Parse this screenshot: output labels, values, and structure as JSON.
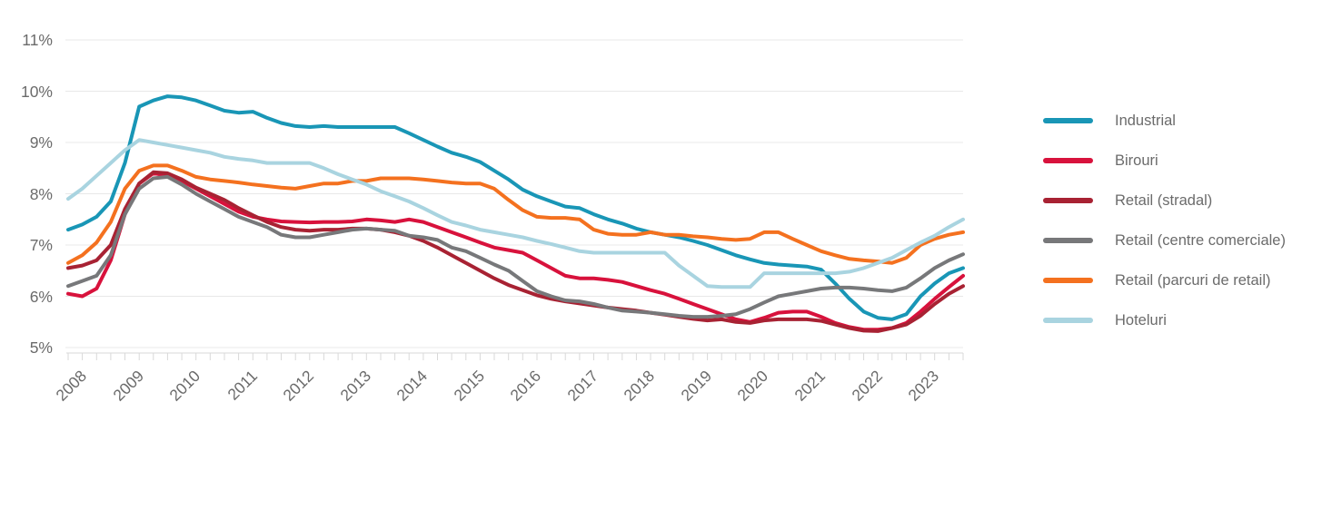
{
  "chart_data": {
    "type": "line",
    "frequency": "quarterly",
    "x_labels": [
      "2008",
      "2009",
      "2010",
      "2011",
      "2012",
      "2013",
      "2014",
      "2015",
      "2016",
      "2017",
      "2018",
      "2019",
      "2020",
      "2021",
      "2022",
      "2023"
    ],
    "y_ticks": [
      "11%",
      "10%",
      "9%",
      "8%",
      "7%",
      "6%",
      "5%"
    ],
    "y_tick_values": [
      11,
      10,
      9,
      8,
      7,
      6,
      5
    ],
    "ylim": [
      5,
      11
    ],
    "unit": "percent",
    "grid": "horizontal",
    "legend_position": "right",
    "axis_text_color": "#6b6b6b",
    "gridline_color": "#e8e8e8",
    "tick_color": "#d9d9d9",
    "series": [
      {
        "id": "industrial",
        "name": "Industrial",
        "color": "#1996b6",
        "values": [
          7.3,
          7.4,
          7.55,
          7.85,
          8.6,
          9.7,
          9.82,
          9.9,
          9.88,
          9.82,
          9.72,
          9.62,
          9.58,
          9.6,
          9.48,
          9.38,
          9.32,
          9.3,
          9.32,
          9.3,
          9.3,
          9.3,
          9.3,
          9.3,
          9.18,
          9.05,
          8.92,
          8.8,
          8.72,
          8.62,
          8.45,
          8.28,
          8.08,
          7.95,
          7.85,
          7.75,
          7.72,
          7.6,
          7.5,
          7.42,
          7.32,
          7.25,
          7.2,
          7.15,
          7.08,
          7.0,
          6.9,
          6.8,
          6.72,
          6.65,
          6.62,
          6.6,
          6.58,
          6.52,
          6.25,
          5.95,
          5.7,
          5.58,
          5.55,
          5.65,
          6.0,
          6.25,
          6.45,
          6.55
        ]
      },
      {
        "id": "birouri",
        "name": "Birouri",
        "color": "#d8123c",
        "values": [
          6.05,
          6.0,
          6.15,
          6.7,
          7.6,
          8.2,
          8.4,
          8.35,
          8.25,
          8.1,
          7.95,
          7.8,
          7.65,
          7.55,
          7.5,
          7.46,
          7.45,
          7.44,
          7.45,
          7.45,
          7.46,
          7.5,
          7.48,
          7.45,
          7.5,
          7.45,
          7.35,
          7.25,
          7.15,
          7.05,
          6.95,
          6.9,
          6.85,
          6.7,
          6.55,
          6.4,
          6.35,
          6.35,
          6.32,
          6.28,
          6.2,
          6.12,
          6.05,
          5.95,
          5.85,
          5.75,
          5.65,
          5.55,
          5.5,
          5.58,
          5.68,
          5.7,
          5.7,
          5.6,
          5.48,
          5.4,
          5.35,
          5.35,
          5.38,
          5.48,
          5.7,
          5.95,
          6.18,
          6.4
        ]
      },
      {
        "id": "retail-stradal",
        "name": "Retail (stradal)",
        "color": "#a82233",
        "values": [
          6.55,
          6.6,
          6.7,
          7.0,
          7.7,
          8.2,
          8.42,
          8.4,
          8.28,
          8.12,
          8.0,
          7.88,
          7.72,
          7.58,
          7.45,
          7.35,
          7.3,
          7.28,
          7.3,
          7.3,
          7.32,
          7.32,
          7.3,
          7.25,
          7.18,
          7.08,
          6.95,
          6.8,
          6.65,
          6.5,
          6.35,
          6.22,
          6.12,
          6.02,
          5.95,
          5.9,
          5.86,
          5.82,
          5.78,
          5.75,
          5.72,
          5.68,
          5.64,
          5.6,
          5.56,
          5.53,
          5.55,
          5.5,
          5.48,
          5.53,
          5.55,
          5.55,
          5.55,
          5.52,
          5.45,
          5.38,
          5.33,
          5.32,
          5.38,
          5.45,
          5.62,
          5.85,
          6.05,
          6.2
        ]
      },
      {
        "id": "retail-centre-comerciale",
        "name": "Retail (centre comerciale)",
        "color": "#77787a",
        "values": [
          6.2,
          6.3,
          6.4,
          6.8,
          7.6,
          8.1,
          8.3,
          8.33,
          8.18,
          8.0,
          7.85,
          7.7,
          7.55,
          7.45,
          7.35,
          7.2,
          7.15,
          7.15,
          7.2,
          7.25,
          7.3,
          7.32,
          7.3,
          7.28,
          7.18,
          7.15,
          7.1,
          6.95,
          6.88,
          6.75,
          6.62,
          6.5,
          6.3,
          6.1,
          6.0,
          5.92,
          5.9,
          5.85,
          5.78,
          5.72,
          5.7,
          5.68,
          5.65,
          5.62,
          5.6,
          5.6,
          5.62,
          5.65,
          5.75,
          5.88,
          6.0,
          6.05,
          6.1,
          6.15,
          6.17,
          6.17,
          6.15,
          6.12,
          6.1,
          6.17,
          6.35,
          6.55,
          6.7,
          6.82
        ]
      },
      {
        "id": "retail-parcuri-de-retail",
        "name": "Retail (parcuri de retail)",
        "color": "#f4711f",
        "values": [
          6.65,
          6.8,
          7.05,
          7.45,
          8.1,
          8.45,
          8.55,
          8.55,
          8.45,
          8.33,
          8.28,
          8.25,
          8.22,
          8.18,
          8.15,
          8.12,
          8.1,
          8.15,
          8.2,
          8.2,
          8.25,
          8.25,
          8.3,
          8.3,
          8.3,
          8.28,
          8.25,
          8.22,
          8.2,
          8.2,
          8.1,
          7.88,
          7.68,
          7.55,
          7.53,
          7.53,
          7.5,
          7.3,
          7.22,
          7.2,
          7.2,
          7.25,
          7.2,
          7.2,
          7.17,
          7.15,
          7.12,
          7.1,
          7.12,
          7.25,
          7.25,
          7.12,
          7.0,
          6.88,
          6.8,
          6.73,
          6.7,
          6.68,
          6.65,
          6.75,
          7.0,
          7.12,
          7.2,
          7.25
        ]
      },
      {
        "id": "hoteluri",
        "name": "Hoteluri",
        "color": "#a9d4e0",
        "values": [
          7.9,
          8.1,
          8.35,
          8.6,
          8.85,
          9.05,
          9.0,
          8.95,
          8.9,
          8.85,
          8.8,
          8.72,
          8.68,
          8.65,
          8.6,
          8.6,
          8.6,
          8.6,
          8.5,
          8.38,
          8.28,
          8.18,
          8.05,
          7.95,
          7.85,
          7.72,
          7.58,
          7.45,
          7.38,
          7.3,
          7.25,
          7.2,
          7.15,
          7.08,
          7.02,
          6.95,
          6.88,
          6.85,
          6.85,
          6.85,
          6.85,
          6.85,
          6.85,
          6.6,
          6.4,
          6.2,
          6.18,
          6.18,
          6.18,
          6.45,
          6.45,
          6.45,
          6.45,
          6.45,
          6.45,
          6.48,
          6.55,
          6.65,
          6.75,
          6.9,
          7.05,
          7.18,
          7.35,
          7.5
        ]
      }
    ]
  }
}
